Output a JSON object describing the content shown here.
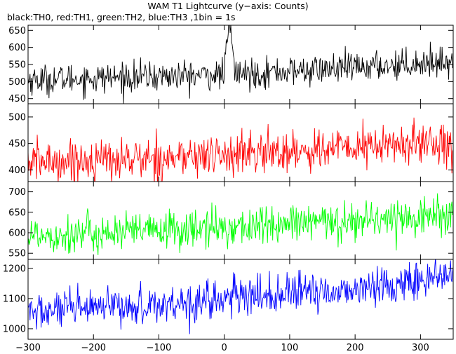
{
  "title": "WAM T1 Lightcurve (y−axis: Counts)",
  "subtitle": "black:TH0, red:TH1, green:TH2, blue:TH3 ,1bin = 1s",
  "chart_data": {
    "type": "line",
    "x_range": [
      -300,
      350
    ],
    "x_ticks": [
      -300,
      -200,
      -100,
      0,
      100,
      200,
      300
    ],
    "x_tick_labels": [
      "−300",
      "−200",
      "−100",
      "0",
      "100",
      "200",
      "300"
    ],
    "grid": false,
    "series": [
      {
        "name": "TH0",
        "color": "#000000",
        "ylim": [
          435,
          665
        ],
        "y_ticks": [
          450,
          500,
          550,
          600,
          650
        ],
        "y_tick_labels": [
          "450",
          "500",
          "550",
          "600",
          "650"
        ],
        "trend_x": [
          -300,
          -200,
          -100,
          0,
          100,
          200,
          300,
          350
        ],
        "trend_y": [
          505,
          510,
          515,
          520,
          530,
          540,
          555,
          560
        ],
        "noise_sd": 22,
        "spike": {
          "x": 8,
          "peak": 660,
          "width": 4
        }
      },
      {
        "name": "TH1",
        "color": "#ff0000",
        "ylim": [
          378,
          525
        ],
        "y_ticks": [
          400,
          450,
          500
        ],
        "y_tick_labels": [
          "400",
          "450",
          "500"
        ],
        "trend_x": [
          -300,
          -200,
          -100,
          0,
          100,
          200,
          300,
          350
        ],
        "trend_y": [
          415,
          418,
          422,
          428,
          435,
          442,
          450,
          455
        ],
        "noise_sd": 20
      },
      {
        "name": "TH2",
        "color": "#00ff00",
        "ylim": [
          535,
          725
        ],
        "y_ticks": [
          550,
          600,
          650,
          700
        ],
        "y_tick_labels": [
          "550",
          "600",
          "650",
          "700"
        ],
        "trend_x": [
          -300,
          -200,
          -100,
          0,
          100,
          200,
          300,
          350
        ],
        "trend_y": [
          595,
          598,
          605,
          612,
          620,
          630,
          640,
          645
        ],
        "noise_sd": 24
      },
      {
        "name": "TH3",
        "color": "#0000ff",
        "ylim": [
          965,
          1230
        ],
        "y_ticks": [
          1000,
          1100,
          1200
        ],
        "y_tick_labels": [
          "1000",
          "1100",
          "1200"
        ],
        "trend_x": [
          -300,
          -200,
          -100,
          0,
          100,
          200,
          300,
          350
        ],
        "trend_y": [
          1055,
          1065,
          1080,
          1100,
          1115,
          1130,
          1160,
          1175
        ],
        "noise_sd": 32
      }
    ]
  }
}
